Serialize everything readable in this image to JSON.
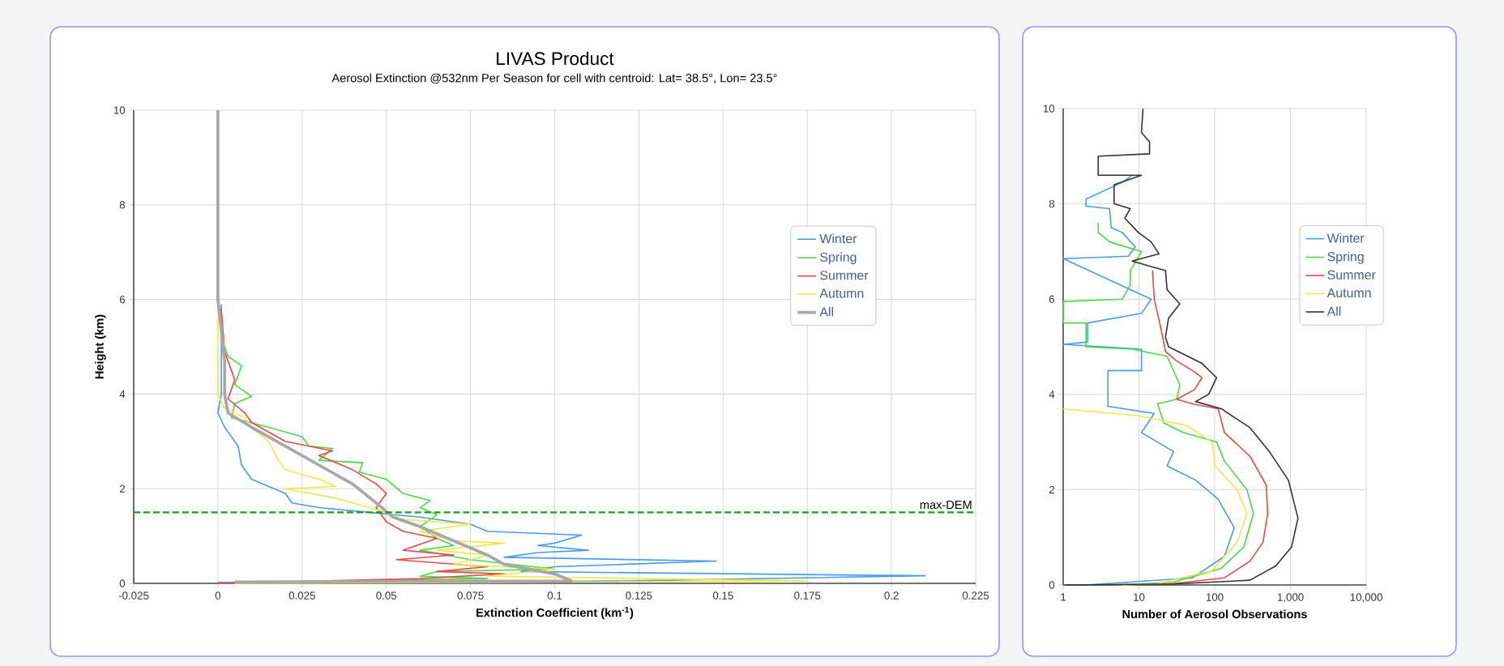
{
  "chart_data": [
    {
      "type": "line",
      "title": "LIVAS Product",
      "subtitle": "Aerosol Extinction @532nm Per Season  for cell with centroid: Lat= 38.5°, Lon= 23.5°",
      "xlabel": "Extinction Coefficient (km$^{-1}$)",
      "ylabel": "Height (km)",
      "xlim": [
        -0.025,
        0.225
      ],
      "ylim": [
        0,
        10
      ],
      "xticks": [
        -0.025,
        0,
        0.025,
        0.05,
        0.075,
        0.1,
        0.125,
        0.15,
        0.175,
        0.2,
        0.225
      ],
      "yticks": [
        0,
        2,
        4,
        6,
        8,
        10
      ],
      "grid": true,
      "legend": "right",
      "ref_lines": [
        {
          "axis": "y",
          "value": 1.5,
          "label": "max-DEM",
          "color": "#1e9a1e",
          "line_style": "dashed"
        }
      ],
      "series": [
        {
          "name": "Winter",
          "color": "#4a9be8",
          "x": [
            0.001,
            0.001,
            0,
            0.002,
            0.006,
            0.007,
            0.01,
            0.02,
            0.022,
            0.03,
            0.045,
            0.06,
            0.075,
            0.08,
            0.108,
            0.1,
            0.095,
            0.11,
            0.095,
            0.085,
            0.148,
            0.12,
            0.1,
            0.09,
            0.21,
            0.12,
            0
          ],
          "values": [
            5.9,
            4,
            3.6,
            3.3,
            2.9,
            2.5,
            2.2,
            1.9,
            1.7,
            1.6,
            1.5,
            1.4,
            1.25,
            1.1,
            1.02,
            0.85,
            0.8,
            0.7,
            0.65,
            0.55,
            0.47,
            0.4,
            0.35,
            0.25,
            0.16,
            0.05,
            0.02
          ]
        },
        {
          "name": "Spring",
          "color": "#4cd84c",
          "x": [
            0.002,
            0.003,
            0.007,
            0.005,
            0.01,
            0.005,
            0.004,
            0.015,
            0.025,
            0.027,
            0.034,
            0.03,
            0.043,
            0.042,
            0.05,
            0.055,
            0.063,
            0.06,
            0.065,
            0.06,
            0.065,
            0.07,
            0.06,
            0.075,
            0.1,
            0.065,
            0.06,
            0.08,
            0
          ],
          "values": [
            5,
            4.8,
            4.6,
            4.2,
            3.95,
            3.8,
            3.5,
            3.3,
            3.1,
            2.9,
            2.85,
            2.6,
            2.55,
            2.35,
            2.2,
            1.9,
            1.75,
            1.6,
            1.45,
            1.2,
            0.95,
            0.8,
            0.7,
            0.5,
            0.3,
            0.25,
            0.15,
            0.1,
            0
          ]
        },
        {
          "name": "Summer",
          "color": "#e84848",
          "x": [
            0.001,
            0.002,
            0.005,
            0.003,
            0.008,
            0.01,
            0.02,
            0.034,
            0.03,
            0.04,
            0.047,
            0.05,
            0.047,
            0.05,
            0.055,
            0.065,
            0.055,
            0.07,
            0.053,
            0.08,
            0.065,
            0.085,
            0.06,
            0
          ],
          "values": [
            5.8,
            4.9,
            4.3,
            3.9,
            3.6,
            3.4,
            3.0,
            2.8,
            2.7,
            2.4,
            2.1,
            1.9,
            1.6,
            1.3,
            1.1,
            0.95,
            0.7,
            0.6,
            0.5,
            0.35,
            0.25,
            0.2,
            0.1,
            0
          ]
        },
        {
          "name": "Autumn",
          "color": "#f0e84a",
          "x": [
            0,
            0,
            0.002,
            0.008,
            0.01,
            0.015,
            0.018,
            0.02,
            0.03,
            0.035,
            0.02,
            0.035,
            0.045,
            0.05,
            0.055,
            0.075,
            0.06,
            0.07,
            0.085,
            0.065,
            0.08,
            0.07,
            0.1,
            0.08,
            0.175,
            0.005
          ],
          "values": [
            5.6,
            4,
            3.7,
            3.5,
            3.3,
            3.0,
            2.6,
            2.4,
            2.2,
            2.05,
            2.0,
            1.8,
            1.6,
            1.5,
            1.35,
            1.25,
            1.1,
            0.9,
            0.85,
            0.7,
            0.6,
            0.4,
            0.3,
            0.15,
            0.05,
            0
          ]
        },
        {
          "name": "All",
          "color": "#a8a8a8",
          "x": [
            0,
            0,
            0.002,
            0.002,
            0.003,
            0.01,
            0.02,
            0.03,
            0.04,
            0.047,
            0.052,
            0.06,
            0.07,
            0.08,
            0.085,
            0.1,
            0.105,
            0.005
          ],
          "values": [
            10,
            6,
            4.7,
            4,
            3.6,
            3.3,
            2.9,
            2.5,
            2.1,
            1.7,
            1.4,
            1.2,
            0.9,
            0.6,
            0.4,
            0.2,
            0.05,
            0.03
          ]
        }
      ]
    },
    {
      "type": "line",
      "xlabel": "Number of Aerosol Observations",
      "log": "x",
      "xlim": [
        1,
        10000
      ],
      "ylim": [
        0,
        10
      ],
      "xticks": [
        1,
        10,
        100,
        {
          "value": 1000,
          "label": "1,000"
        },
        {
          "value": 10000,
          "label": "10,000"
        }
      ],
      "yticks": [
        0,
        2,
        4,
        6,
        8,
        10
      ],
      "grid": true,
      "legend": "right",
      "series": [
        {
          "name": "Winter",
          "color": "#4a9be8",
          "x": [
            8.1,
            6.0,
            2.0,
            2.0,
            4.1,
            4.3,
            6.0,
            8.9,
            7.3,
            1,
            14.5,
            10.8,
            2.1,
            2.1,
            1,
            10.8,
            10.8,
            3.9,
            3.9,
            15.9,
            10.8,
            28.6,
            23.5,
            56,
            111,
            181,
            134,
            51,
            2.0
          ],
          "values": [
            8.6,
            8.45,
            8.1,
            7.95,
            7.9,
            7.5,
            7.4,
            7.1,
            6.9,
            6.85,
            6.0,
            5.7,
            5.5,
            5.1,
            5.05,
            4.95,
            4.5,
            4.5,
            3.75,
            3.6,
            3.2,
            2.8,
            2.5,
            2.2,
            1.8,
            1.2,
            0.6,
            0.15,
            0
          ]
        },
        {
          "name": "Spring",
          "color": "#4cd84c",
          "x": [
            2.9,
            2.9,
            4.1,
            10.8,
            7.7,
            7.7,
            6.0,
            1,
            1,
            2.0,
            2.0,
            8.1,
            23.5,
            34.6,
            31.5,
            17.6,
            21.3,
            38.2,
            106,
            134,
            266,
            324,
            242,
            122,
            28.6,
            5.5
          ],
          "values": [
            7.6,
            7.4,
            7.2,
            7.0,
            6.6,
            6.3,
            6.0,
            5.95,
            5.5,
            5.5,
            5.0,
            4.95,
            4.8,
            4.2,
            3.9,
            3.8,
            3.4,
            3.2,
            3.0,
            2.6,
            2.0,
            1.5,
            0.8,
            0.35,
            0.06,
            0
          ]
        },
        {
          "name": "Summer",
          "color": "#e84848",
          "x": [
            15.1,
            15.9,
            19.4,
            22.4,
            31.5,
            51,
            68,
            54,
            31.5,
            51,
            111,
            134,
            292,
            478,
            500,
            434,
            292,
            134,
            28.6,
            14.5
          ],
          "values": [
            6.6,
            6.0,
            5.4,
            4.9,
            4.7,
            4.5,
            4.35,
            4.1,
            3.9,
            3.8,
            3.7,
            3.2,
            2.7,
            2.1,
            1.5,
            0.9,
            0.5,
            0.15,
            0.03,
            0
          ]
        },
        {
          "name": "Autumn",
          "color": "#f0e84a",
          "x": [
            1,
            9.8,
            42,
            92,
            101,
            198,
            266,
            198,
            92,
            17.6,
            6.0
          ],
          "values": [
            3.7,
            3.55,
            3.35,
            3.0,
            2.5,
            2.0,
            1.5,
            0.9,
            0.3,
            0.03,
            0
          ]
        },
        {
          "name": "All",
          "color": "#333333",
          "x": [
            11.3,
            10.8,
            13.8,
            13.8,
            2.9,
            2.9,
            10.8,
            4.7,
            4.7,
            7.7,
            6.5,
            9.8,
            14.5,
            18.4,
            8.1,
            22.4,
            23.5,
            34.6,
            24.6,
            22.4,
            24.6,
            68,
            106,
            83,
            56,
            122,
            292,
            526,
            938,
            1256,
            1034,
            640,
            292,
            28.6,
            1.05
          ],
          "values": [
            10,
            9.5,
            9.3,
            9.05,
            9.0,
            8.6,
            8.6,
            8.4,
            8.0,
            7.9,
            7.7,
            7.4,
            7.2,
            6.95,
            6.8,
            6.6,
            6.2,
            5.9,
            5.6,
            5.2,
            5.0,
            4.65,
            4.35,
            4.0,
            3.85,
            3.7,
            3.3,
            2.8,
            2.2,
            1.4,
            0.8,
            0.4,
            0.1,
            0.02,
            0
          ]
        }
      ]
    }
  ]
}
